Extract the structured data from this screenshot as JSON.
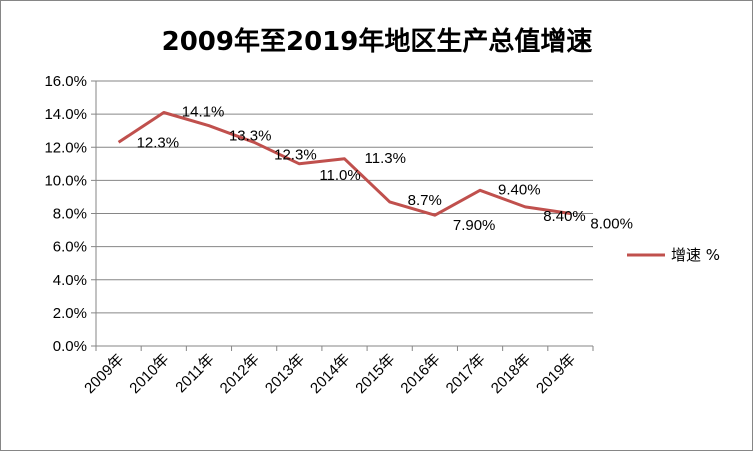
{
  "chart_data": {
    "type": "line",
    "title": "2009年至2019年地区生产总值增速",
    "xlabel": "",
    "ylabel": "",
    "categories": [
      "2009年",
      "2010年",
      "2011年",
      "2012年",
      "2013年",
      "2014年",
      "2015年",
      "2016年",
      "2017年",
      "2018年",
      "2019年"
    ],
    "series": [
      {
        "name": "增速 %",
        "values": [
          12.3,
          14.1,
          13.3,
          12.3,
          11.0,
          11.3,
          8.7,
          7.9,
          9.4,
          8.4,
          8.0
        ],
        "labels": [
          "12.3%",
          "14.1%",
          "13.3%",
          "12.3%",
          "11.0%",
          "11.3%",
          "8.7%",
          "7.90%",
          "9.40%",
          "8.40%",
          "8.00%"
        ],
        "color": "#C0504D"
      }
    ],
    "ylim": [
      0,
      16
    ],
    "yticks": [
      0,
      2,
      4,
      6,
      8,
      10,
      12,
      14,
      16
    ],
    "ytick_labels": [
      "0.0%",
      "2.0%",
      "4.0%",
      "6.0%",
      "8.0%",
      "10.0%",
      "12.0%",
      "14.0%",
      "16.0%"
    ],
    "grid": true,
    "legend_position": "right"
  },
  "colors": {
    "series": "#C0504D",
    "grid": "#868686",
    "axis": "#868686"
  }
}
